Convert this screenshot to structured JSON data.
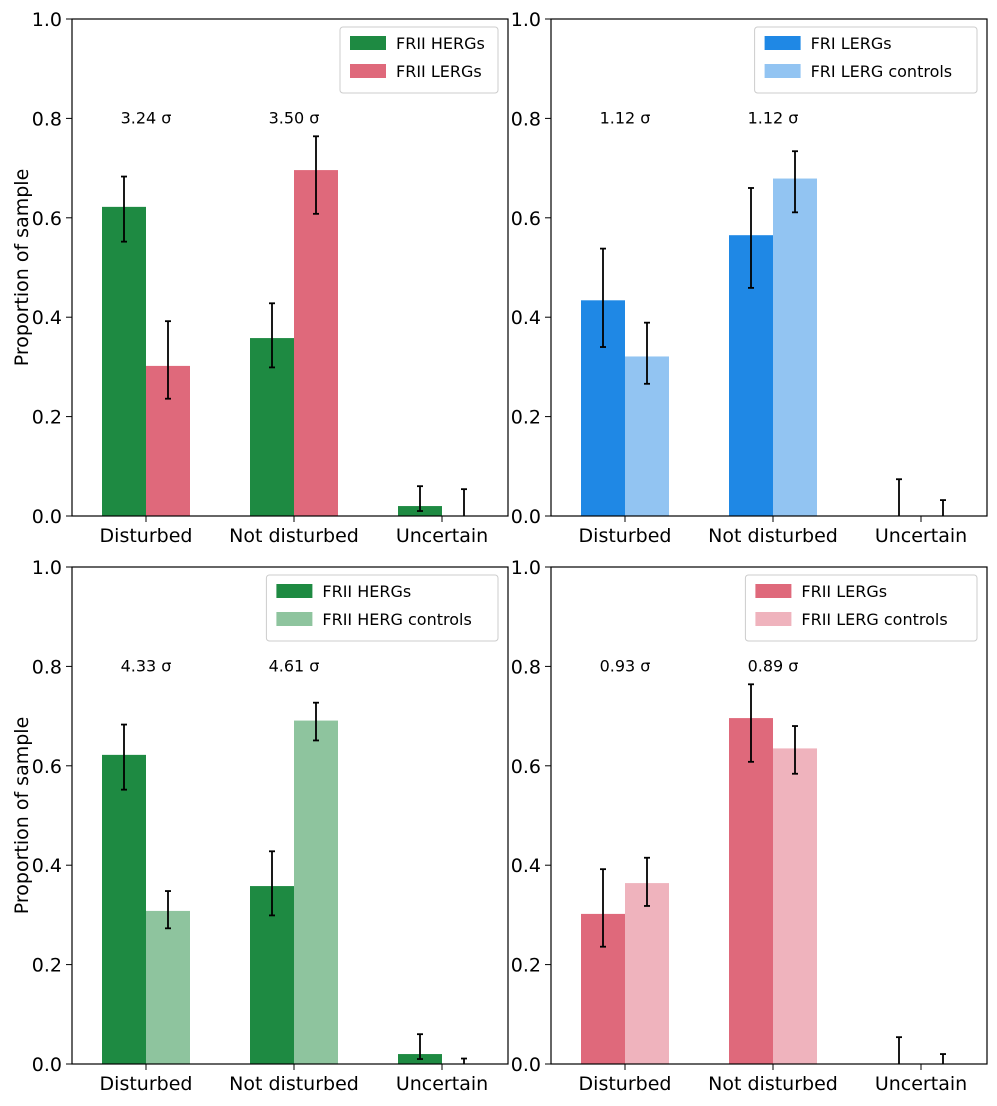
{
  "colors": {
    "frii_herg": "#1e8a42",
    "frii_lerg": "#df697b",
    "fri_lerg": "#1f88e5",
    "fri_lerg_control": "#92c4f2",
    "frii_herg_control": "#8ec49e",
    "frii_lerg_control": "#efb3bd"
  },
  "chart_data": [
    {
      "type": "bar",
      "panel": "top-left",
      "categories": [
        "Disturbed",
        "Not disturbed",
        "Uncertain"
      ],
      "ylabel": "Proportion of sample",
      "ylim": [
        0,
        1.0
      ],
      "yticks": [
        "0.0",
        "0.2",
        "0.4",
        "0.6",
        "0.8",
        "1.0"
      ],
      "legend_position": "top-right",
      "series": [
        {
          "name": "FRII HERGs",
          "color": "#1e8a42",
          "values": [
            0.622,
            0.358,
            0.02
          ],
          "err_low": [
            0.552,
            0.299,
            0.01
          ],
          "err_high": [
            0.683,
            0.428,
            0.06
          ]
        },
        {
          "name": "FRII LERGs",
          "color": "#df697b",
          "values": [
            0.302,
            0.696,
            0.0
          ],
          "err_low": [
            0.236,
            0.608,
            0.0
          ],
          "err_high": [
            0.392,
            0.764,
            0.054
          ]
        }
      ],
      "annotations": [
        {
          "category": "Disturbed",
          "y": 0.8,
          "text": "3.24 σ"
        },
        {
          "category": "Not disturbed",
          "y": 0.8,
          "text": "3.50 σ"
        }
      ]
    },
    {
      "type": "bar",
      "panel": "top-right",
      "categories": [
        "Disturbed",
        "Not disturbed",
        "Uncertain"
      ],
      "ylabel": "",
      "ylim": [
        0,
        1.0
      ],
      "yticks": [
        "0.0",
        "0.2",
        "0.4",
        "0.6",
        "0.8",
        "1.0"
      ],
      "legend_position": "top-right",
      "series": [
        {
          "name": "FRI LERGs",
          "color": "#1f88e5",
          "values": [
            0.434,
            0.565,
            0.0
          ],
          "err_low": [
            0.34,
            0.459,
            0.0
          ],
          "err_high": [
            0.538,
            0.66,
            0.074
          ]
        },
        {
          "name": "FRI LERG controls",
          "color": "#92c4f2",
          "values": [
            0.321,
            0.679,
            0.0
          ],
          "err_low": [
            0.266,
            0.611,
            0.0
          ],
          "err_high": [
            0.389,
            0.734,
            0.032
          ]
        }
      ],
      "annotations": [
        {
          "category": "Disturbed",
          "y": 0.8,
          "text": "1.12 σ"
        },
        {
          "category": "Not disturbed",
          "y": 0.8,
          "text": "1.12 σ"
        }
      ]
    },
    {
      "type": "bar",
      "panel": "bottom-left",
      "categories": [
        "Disturbed",
        "Not disturbed",
        "Uncertain"
      ],
      "ylabel": "Proportion of sample",
      "ylim": [
        0,
        1.0
      ],
      "yticks": [
        "0.0",
        "0.2",
        "0.4",
        "0.6",
        "0.8",
        "1.0"
      ],
      "legend_position": "top-right",
      "series": [
        {
          "name": "FRII HERGs",
          "color": "#1e8a42",
          "values": [
            0.622,
            0.358,
            0.02
          ],
          "err_low": [
            0.552,
            0.299,
            0.01
          ],
          "err_high": [
            0.683,
            0.428,
            0.06
          ]
        },
        {
          "name": "FRII HERG controls",
          "color": "#8ec49e",
          "values": [
            0.308,
            0.691,
            0.0
          ],
          "err_low": [
            0.273,
            0.651,
            0.0
          ],
          "err_high": [
            0.348,
            0.727,
            0.011
          ]
        }
      ],
      "annotations": [
        {
          "category": "Disturbed",
          "y": 0.8,
          "text": "4.33 σ"
        },
        {
          "category": "Not disturbed",
          "y": 0.8,
          "text": "4.61 σ"
        }
      ]
    },
    {
      "type": "bar",
      "panel": "bottom-right",
      "categories": [
        "Disturbed",
        "Not disturbed",
        "Uncertain"
      ],
      "ylabel": "",
      "ylim": [
        0,
        1.0
      ],
      "yticks": [
        "0.0",
        "0.2",
        "0.4",
        "0.6",
        "0.8",
        "1.0"
      ],
      "legend_position": "top-right",
      "series": [
        {
          "name": "FRII LERGs",
          "color": "#df697b",
          "values": [
            0.302,
            0.696,
            0.0
          ],
          "err_low": [
            0.236,
            0.608,
            0.0
          ],
          "err_high": [
            0.392,
            0.764,
            0.054
          ]
        },
        {
          "name": "FRII LERG controls",
          "color": "#efb3bd",
          "values": [
            0.364,
            0.635,
            0.0
          ],
          "err_low": [
            0.318,
            0.584,
            0.0
          ],
          "err_high": [
            0.415,
            0.68,
            0.02
          ]
        }
      ],
      "annotations": [
        {
          "category": "Disturbed",
          "y": 0.8,
          "text": "0.93 σ"
        },
        {
          "category": "Not disturbed",
          "y": 0.8,
          "text": "0.89 σ"
        }
      ]
    }
  ]
}
